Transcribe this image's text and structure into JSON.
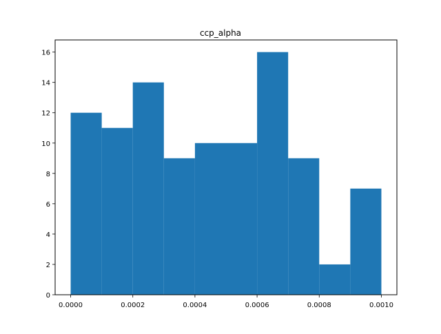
{
  "chart_data": {
    "type": "bar",
    "title": "ccp_alpha",
    "xlabel": "",
    "ylabel": "",
    "bin_edges": [
      0.0,
      0.0001,
      0.0002,
      0.0003,
      0.0004,
      0.0005,
      0.0006,
      0.0007,
      0.0008,
      0.0009,
      0.001
    ],
    "values": [
      12,
      11,
      14,
      9,
      10,
      10,
      16,
      9,
      2,
      7
    ],
    "xlim": [
      -5e-05,
      0.00105
    ],
    "ylim": [
      0,
      16.8
    ],
    "x_ticks": [
      {
        "value": 0.0,
        "label": "0.0000"
      },
      {
        "value": 0.0002,
        "label": "0.0002"
      },
      {
        "value": 0.0004,
        "label": "0.0004"
      },
      {
        "value": 0.0006,
        "label": "0.0006"
      },
      {
        "value": 0.0008,
        "label": "0.0008"
      },
      {
        "value": 0.001,
        "label": "0.0010"
      }
    ],
    "y_ticks": [
      {
        "value": 0,
        "label": "0"
      },
      {
        "value": 2,
        "label": "2"
      },
      {
        "value": 4,
        "label": "4"
      },
      {
        "value": 6,
        "label": "6"
      },
      {
        "value": 8,
        "label": "8"
      },
      {
        "value": 10,
        "label": "10"
      },
      {
        "value": 12,
        "label": "12"
      },
      {
        "value": 14,
        "label": "14"
      },
      {
        "value": 16,
        "label": "16"
      }
    ],
    "bar_color": "#1f77b4",
    "grid": false,
    "legend": "none"
  }
}
